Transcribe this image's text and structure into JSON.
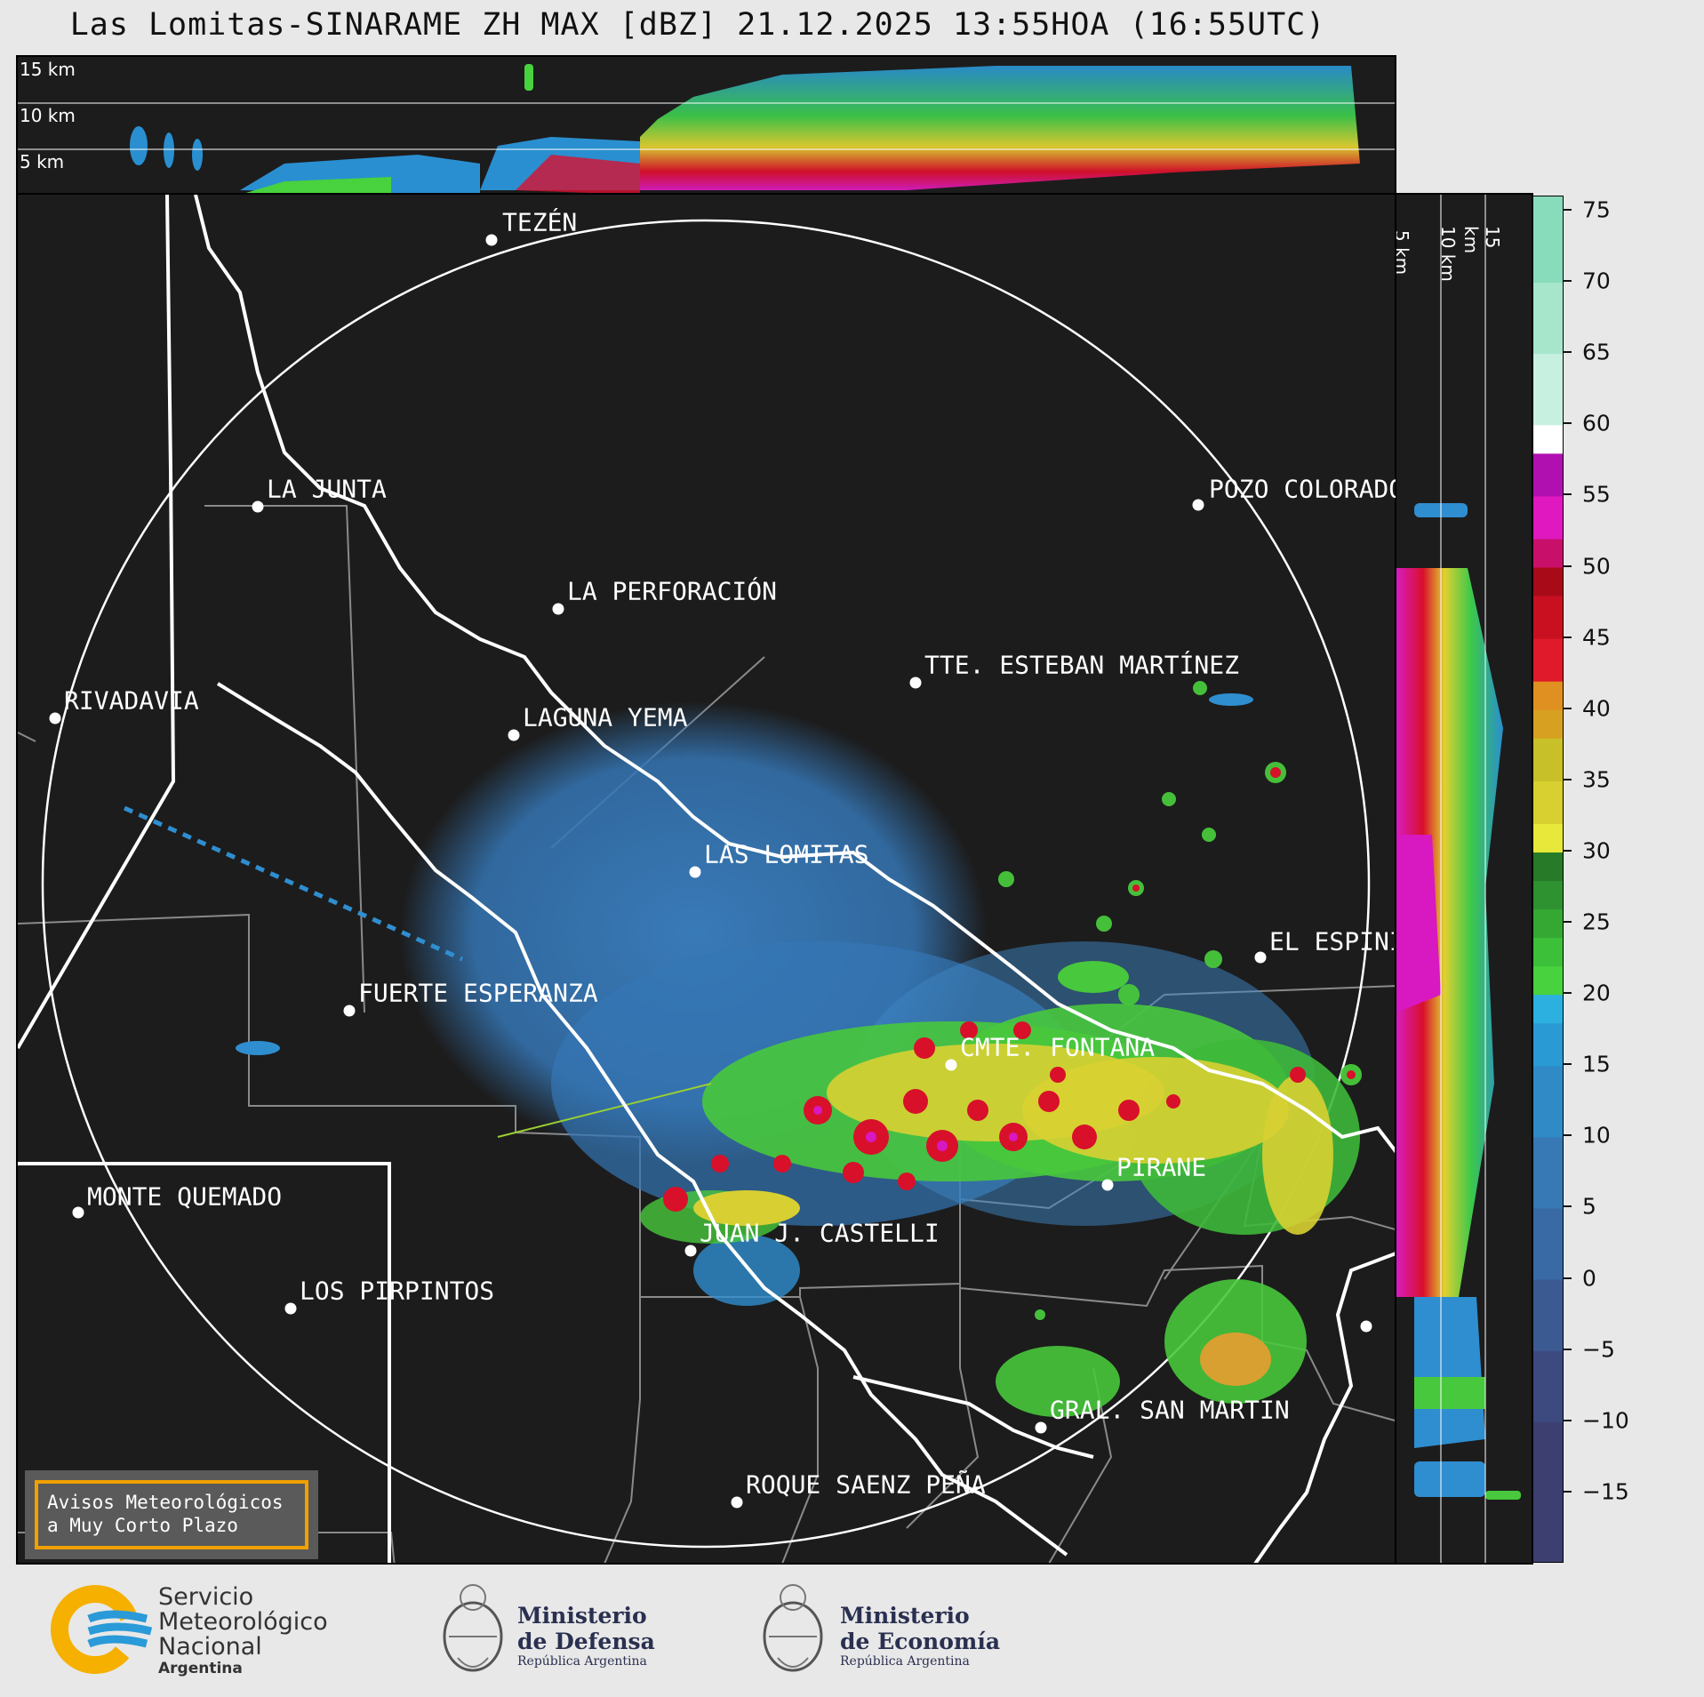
{
  "title": "Las Lomitas-SINARAME ZH MAX [dBZ] 21.12.2025 13:55HOA (16:55UTC)",
  "top_panel": {
    "km_labels": [
      "15 km",
      "10 km",
      "5 km"
    ]
  },
  "side_panel": {
    "km_labels": [
      "5 km",
      "10 km",
      "15 km"
    ]
  },
  "colorbar": {
    "ticks": [
      "75",
      "70",
      "65",
      "60",
      "55",
      "50",
      "45",
      "40",
      "35",
      "30",
      "25",
      "20",
      "15",
      "10",
      "5",
      "0",
      "−5",
      "−10",
      "−15"
    ],
    "min": -20,
    "max": 76
  },
  "cities": [
    {
      "name": "TEZÉN"
    },
    {
      "name": "LA JUNTA"
    },
    {
      "name": "POZO COLORADO"
    },
    {
      "name": "LA PERFORACIÓN"
    },
    {
      "name": "TTE. ESTEBAN MARTÍNEZ"
    },
    {
      "name": "RIVADAVIA"
    },
    {
      "name": "LAGUNA YEMA"
    },
    {
      "name": "LAS LOMITAS"
    },
    {
      "name": "EL ESPINILLO"
    },
    {
      "name": "FUERTE ESPERANZA"
    },
    {
      "name": "CMTE. FONTANA"
    },
    {
      "name": "PIRANE"
    },
    {
      "name": "MONTE QUEMADO"
    },
    {
      "name": "JUAN J. CASTELLI"
    },
    {
      "name": "LOS PIRPINTOS"
    },
    {
      "name": "GRAL. SAN MARTIN"
    },
    {
      "name": "ROQUE SAENZ PEÑA"
    }
  ],
  "avisos": {
    "line1": "Avisos Meteorológicos",
    "line2": "a Muy Corto Plazo"
  },
  "logos": {
    "smn": {
      "line1": "Servicio",
      "line2": "Meteorológico",
      "line3": "Nacional",
      "line4": "Argentina"
    },
    "defensa": {
      "line1": "Ministerio",
      "line2": "de Defensa",
      "line3": "República Argentina"
    },
    "economia": {
      "line1": "Ministerio",
      "line2": "de Economía",
      "line3": "República Argentina"
    }
  },
  "colors": {
    "background": "#1c1c1c",
    "accent": "#f0a000"
  }
}
